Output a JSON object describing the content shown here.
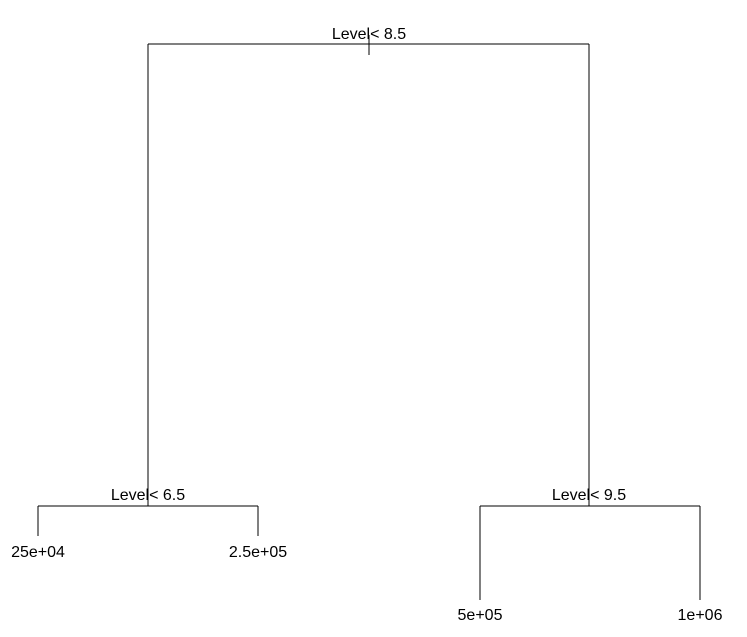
{
  "tree": {
    "root": {
      "split": "Level< 8.5",
      "left": {
        "split": "Level< 6.5",
        "left": {
          "leaf": "25e+04"
        },
        "right": {
          "leaf": "2.5e+05"
        }
      },
      "right": {
        "split": "Level< 9.5",
        "left": {
          "leaf": "5e+05"
        },
        "right": {
          "leaf": "1e+06"
        }
      }
    }
  }
}
